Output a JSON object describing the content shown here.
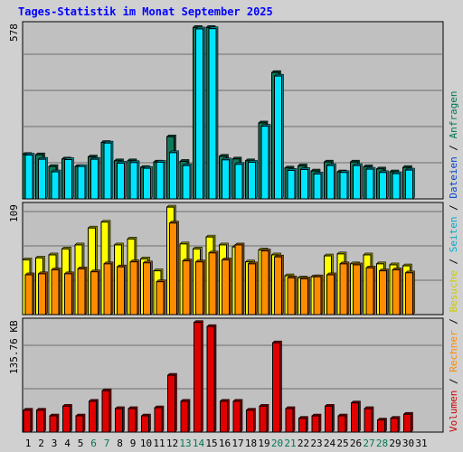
{
  "title": "Tages-Statistik im Monat September 2025",
  "right_legend": [
    {
      "text": "Volumen",
      "color": "#cc0000"
    },
    {
      "text": "/",
      "color": "#000000"
    },
    {
      "text": "Rechner",
      "color": "#ff8800"
    },
    {
      "text": "/",
      "color": "#000000"
    },
    {
      "text": "Besuche",
      "color": "#cccc00"
    },
    {
      "text": "/",
      "color": "#000000"
    },
    {
      "text": "Seiten",
      "color": "#00aacc"
    },
    {
      "text": "/",
      "color": "#000000"
    },
    {
      "text": "Dateien",
      "color": "#0044cc"
    },
    {
      "text": "/",
      "color": "#000000"
    },
    {
      "text": "Anfragen",
      "color": "#007755"
    }
  ],
  "colors": {
    "anfragen": "#0f7a5a",
    "dateien": "#00e5ff",
    "besuche": "#ffff00",
    "rechner": "#ff8c00",
    "volumen": "#e00000",
    "weekend_label": "#007755",
    "panel_bg": "#c0c0c0"
  },
  "chart_data": [
    {
      "type": "bar",
      "name": "anfragen-dateien",
      "ymax_label": "578",
      "ylim": [
        0,
        578
      ],
      "categories": [
        "1",
        "2",
        "3",
        "4",
        "5",
        "6",
        "7",
        "8",
        "9",
        "10",
        "11",
        "12",
        "13",
        "14",
        "15",
        "16",
        "17",
        "18",
        "19",
        "20",
        "21",
        "22",
        "23",
        "24",
        "25",
        "26",
        "27",
        "28",
        "29",
        "30",
        "31"
      ],
      "weekend": [
        "6",
        "7",
        "13",
        "14",
        "20",
        "21",
        "27",
        "28"
      ],
      "series": [
        {
          "key": "anfragen",
          "values": [
            148,
            147,
            108,
            133,
            108,
            140,
            188,
            127,
            127,
            105,
            123,
            207,
            125,
            571,
            571,
            142,
            133,
            127,
            253,
            421,
            103,
            110,
            93,
            123,
            90,
            123,
            107,
            100,
            90,
            105,
            0
          ]
        },
        {
          "key": "dateien",
          "values": [
            146,
            132,
            90,
            131,
            108,
            132,
            186,
            119,
            121,
            102,
            122,
            154,
            111,
            566,
            567,
            130,
            115,
            122,
            242,
            409,
            95,
            98,
            83,
            111,
            88,
            111,
            99,
            88,
            84,
            96,
            0
          ]
        }
      ]
    },
    {
      "type": "bar",
      "name": "besuche-rechner",
      "ymax_label": "109",
      "ylim": [
        0,
        109
      ],
      "categories": [
        "1",
        "2",
        "3",
        "4",
        "5",
        "6",
        "7",
        "8",
        "9",
        "10",
        "11",
        "12",
        "13",
        "14",
        "15",
        "16",
        "17",
        "18",
        "19",
        "20",
        "21",
        "22",
        "23",
        "24",
        "25",
        "26",
        "27",
        "28",
        "29",
        "30",
        "31"
      ],
      "series": [
        {
          "key": "besuche",
          "values": [
            55,
            57,
            60,
            66,
            70,
            87,
            93,
            70,
            76,
            56,
            44,
            108,
            71,
            66,
            78,
            70,
            68,
            53,
            65,
            60,
            39,
            37,
            38,
            59,
            61,
            51,
            60,
            51,
            50,
            49,
            0
          ]
        },
        {
          "key": "rechner",
          "values": [
            40,
            41,
            45,
            41,
            46,
            43,
            51,
            48,
            53,
            52,
            33,
            92,
            54,
            53,
            62,
            55,
            70,
            51,
            64,
            58,
            37,
            36,
            38,
            40,
            51,
            50,
            47,
            44,
            45,
            42,
            0
          ]
        }
      ]
    },
    {
      "type": "bar",
      "name": "volumen",
      "ymax_label": "135.76 KB",
      "ylim": [
        0,
        135.76
      ],
      "categories": [
        "1",
        "2",
        "3",
        "4",
        "5",
        "6",
        "7",
        "8",
        "9",
        "10",
        "11",
        "12",
        "13",
        "14",
        "15",
        "16",
        "17",
        "18",
        "19",
        "20",
        "21",
        "22",
        "23",
        "24",
        "25",
        "26",
        "27",
        "28",
        "29",
        "30",
        "31"
      ],
      "series": [
        {
          "key": "volumen",
          "values": [
            27,
            27,
            20,
            32,
            20,
            38,
            51,
            29,
            29,
            20,
            30,
            70,
            38,
            135,
            130,
            38,
            38,
            27,
            32,
            110,
            29,
            17,
            20,
            32,
            20,
            36,
            29,
            15,
            17,
            22,
            0
          ]
        }
      ]
    }
  ]
}
